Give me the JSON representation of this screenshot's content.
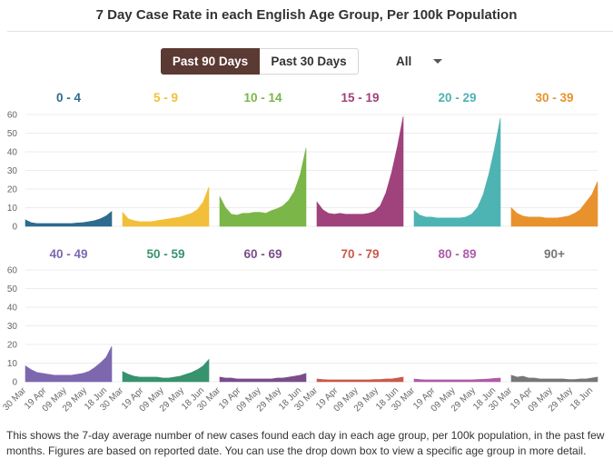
{
  "title": "7 Day Case Rate in each English Age Group, Per 100k Population",
  "controls": {
    "past90_label": "Past 90 Days",
    "past30_label": "Past 30 Days",
    "select_value": "All"
  },
  "footnote": "This shows the 7-day average number of new cases found each day in each age group, per 100k population, in the past few months. Figures are based on reported date. You can use the drop down box to view a specific age group in more detail.",
  "chart_data": {
    "type": "area",
    "layout": "small-multiples",
    "ylim": [
      0,
      60
    ],
    "yticks": [
      0,
      10,
      20,
      30,
      40,
      50,
      60
    ],
    "x_tick_labels": [
      "30 Mar",
      "19 Apr",
      "09 May",
      "29 May",
      "18 Jun"
    ],
    "panels": [
      {
        "name": "0 - 4",
        "color": "#2e6b8f",
        "values": [
          3.5,
          2,
          1.5,
          1.5,
          1.5,
          1.5,
          1.5,
          1.5,
          1.5,
          1.8,
          2,
          2.5,
          3,
          4,
          5.5,
          8
        ]
      },
      {
        "name": "5 - 9",
        "color": "#f2bf3a",
        "values": [
          7.5,
          4,
          3,
          2.5,
          2.5,
          2.5,
          3,
          3.5,
          4,
          4.5,
          5,
          6,
          7,
          9,
          13,
          21
        ]
      },
      {
        "name": "10 - 14",
        "color": "#7ab648",
        "values": [
          16,
          10,
          6.5,
          6,
          7,
          7,
          7.5,
          7.5,
          7,
          8.5,
          9.5,
          11,
          14,
          19,
          28,
          42
        ]
      },
      {
        "name": "15 - 19",
        "color": "#a0427b",
        "values": [
          13,
          9,
          7,
          6.5,
          7,
          6.5,
          6.5,
          6.5,
          6.5,
          7,
          8,
          11,
          18,
          29,
          43,
          59
        ]
      },
      {
        "name": "20 - 29",
        "color": "#4eb3b3",
        "values": [
          8.5,
          6,
          5,
          5,
          4.5,
          4.5,
          4.5,
          4.5,
          4.5,
          5,
          6.5,
          10,
          17,
          28,
          42,
          58
        ]
      },
      {
        "name": "30 - 39",
        "color": "#e8922e",
        "values": [
          10,
          7,
          5.5,
          5,
          5,
          5,
          4.5,
          4.5,
          4.5,
          5,
          5.5,
          7,
          9,
          13,
          17,
          24
        ]
      },
      {
        "name": "40 - 49",
        "color": "#7d68b0",
        "values": [
          8.5,
          6.5,
          5,
          4.5,
          4,
          3.5,
          3.5,
          3.5,
          3.5,
          4,
          4.5,
          5.5,
          7.5,
          10,
          13,
          19
        ]
      },
      {
        "name": "50 - 59",
        "color": "#36936e",
        "values": [
          5.5,
          4,
          3,
          2.5,
          2.5,
          2.5,
          2.5,
          2,
          2,
          2.5,
          3,
          4,
          5,
          6.5,
          8.5,
          12
        ]
      },
      {
        "name": "60 - 69",
        "color": "#7a4d8a",
        "values": [
          2.5,
          2,
          2,
          1.5,
          1.5,
          1.5,
          1.5,
          1.5,
          1.5,
          1.5,
          2,
          2,
          2.5,
          3,
          3.5,
          4.5
        ]
      },
      {
        "name": "70 - 79",
        "color": "#c9594a",
        "values": [
          1.5,
          1.2,
          1,
          1,
          1,
          1,
          1,
          1,
          1,
          1,
          1.2,
          1.2,
          1.5,
          1.5,
          2,
          2.5
        ]
      },
      {
        "name": "80 - 89",
        "color": "#b05aa8",
        "values": [
          1.5,
          1.2,
          1,
          1,
          1,
          1,
          1,
          1,
          1,
          1,
          1,
          1.2,
          1.3,
          1.5,
          1.8,
          2
        ]
      },
      {
        "name": "90+",
        "color": "#777777",
        "values": [
          3.5,
          2.5,
          3,
          2,
          2,
          1.5,
          1.5,
          1.5,
          1.5,
          1.5,
          1.2,
          1.2,
          1.5,
          1.5,
          2,
          2.5
        ]
      }
    ]
  }
}
